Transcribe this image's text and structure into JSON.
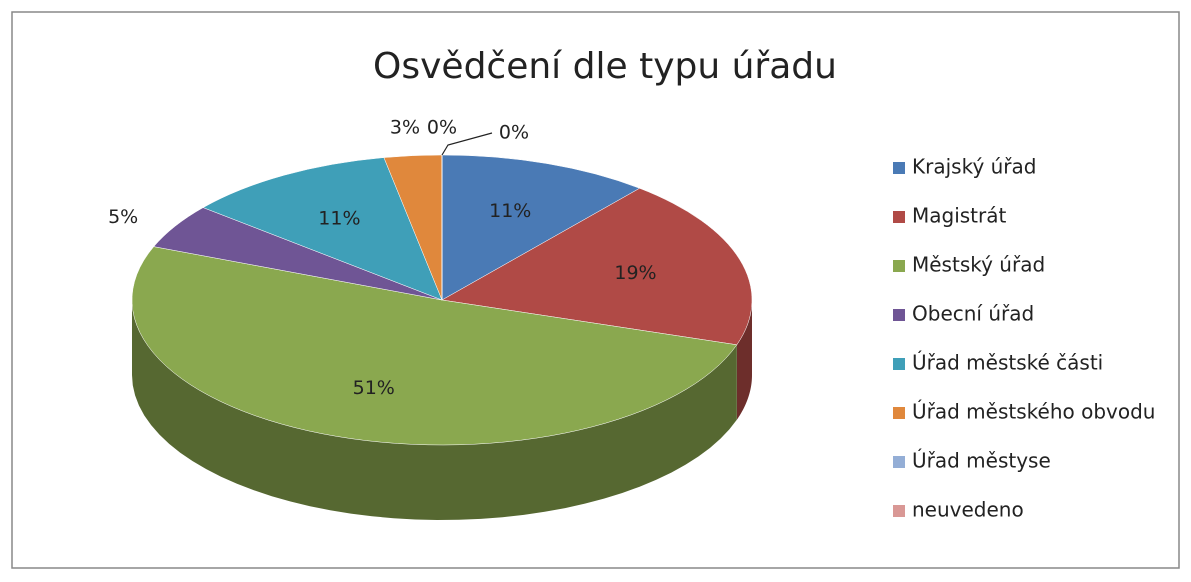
{
  "chart_data": {
    "type": "pie",
    "title": "Osvědčení dle typu úřadu",
    "categories": [
      "Krajský úřad",
      "Magistrát",
      "Městský úřad",
      "Obecní úřad",
      "Úřad městské části",
      "Úřad městského obvodu",
      "Úřad městyse",
      "neuvedeno"
    ],
    "values": [
      11,
      19,
      51,
      5,
      11,
      3,
      0,
      0
    ],
    "value_labels": [
      "11%",
      "19%",
      "51%",
      "5%",
      "11%",
      "3%",
      "0%",
      "0%"
    ],
    "colors": [
      "#4a7ab5",
      "#b04a46",
      "#8aa84f",
      "#6f5595",
      "#3f9fb8",
      "#e0883c",
      "#94aed6",
      "#d99895"
    ],
    "legend": "right"
  }
}
